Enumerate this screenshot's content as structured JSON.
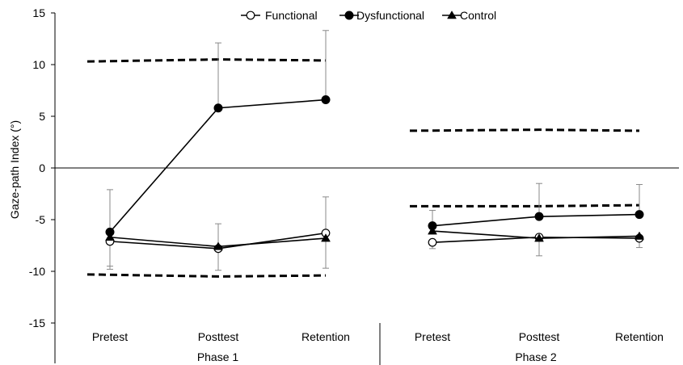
{
  "chart_data": {
    "type": "line",
    "title": "",
    "ylabel": "Gaze-path Index (°)",
    "xlabel": "",
    "ylim": [
      -15,
      15
    ],
    "yticks": [
      15,
      10,
      5,
      0,
      -5,
      -10,
      -15
    ],
    "grid": false,
    "legend_position": "top-center",
    "groups": [
      {
        "label": "Phase 1",
        "categories": [
          "Pretest",
          "Posttest",
          "Retention"
        ]
      },
      {
        "label": "Phase 2",
        "categories": [
          "Pretest",
          "Posttest",
          "Retention"
        ]
      }
    ],
    "series": [
      {
        "name": "Functional",
        "marker": "circle-open",
        "phase1": {
          "values": [
            -7.1,
            -7.8,
            -6.3
          ],
          "error": [
            2.7,
            2.4,
            3.5
          ]
        },
        "phase2": {
          "values": [
            -7.2,
            -6.7,
            -6.8
          ],
          "error": [
            0.6,
            0.0,
            0.9
          ]
        }
      },
      {
        "name": "Dysfunctional",
        "marker": "circle-filled",
        "phase1": {
          "values": [
            -6.2,
            5.8,
            6.6
          ],
          "error": [
            4.1,
            6.3,
            6.7
          ]
        },
        "phase2": {
          "values": [
            -5.6,
            -4.7,
            -4.5
          ],
          "error": [
            1.5,
            3.2,
            2.9
          ]
        }
      },
      {
        "name": "Control",
        "marker": "triangle-filled",
        "phase1": {
          "values": [
            -6.7,
            -7.6,
            -6.8
          ],
          "error": [
            2.8,
            2.3,
            2.9
          ]
        },
        "phase2": {
          "values": [
            -6.1,
            -6.8,
            -6.6
          ],
          "error": [
            0.0,
            1.7,
            0.0
          ]
        }
      }
    ],
    "reference_bands": [
      {
        "phase": 1,
        "upper": [
          10.3,
          10.5,
          10.4
        ],
        "lower": [
          -10.3,
          -10.5,
          -10.4
        ]
      },
      {
        "phase": 2,
        "upper": [
          3.6,
          3.7,
          3.6
        ],
        "lower": [
          -3.7,
          -3.7,
          -3.6
        ]
      }
    ]
  }
}
